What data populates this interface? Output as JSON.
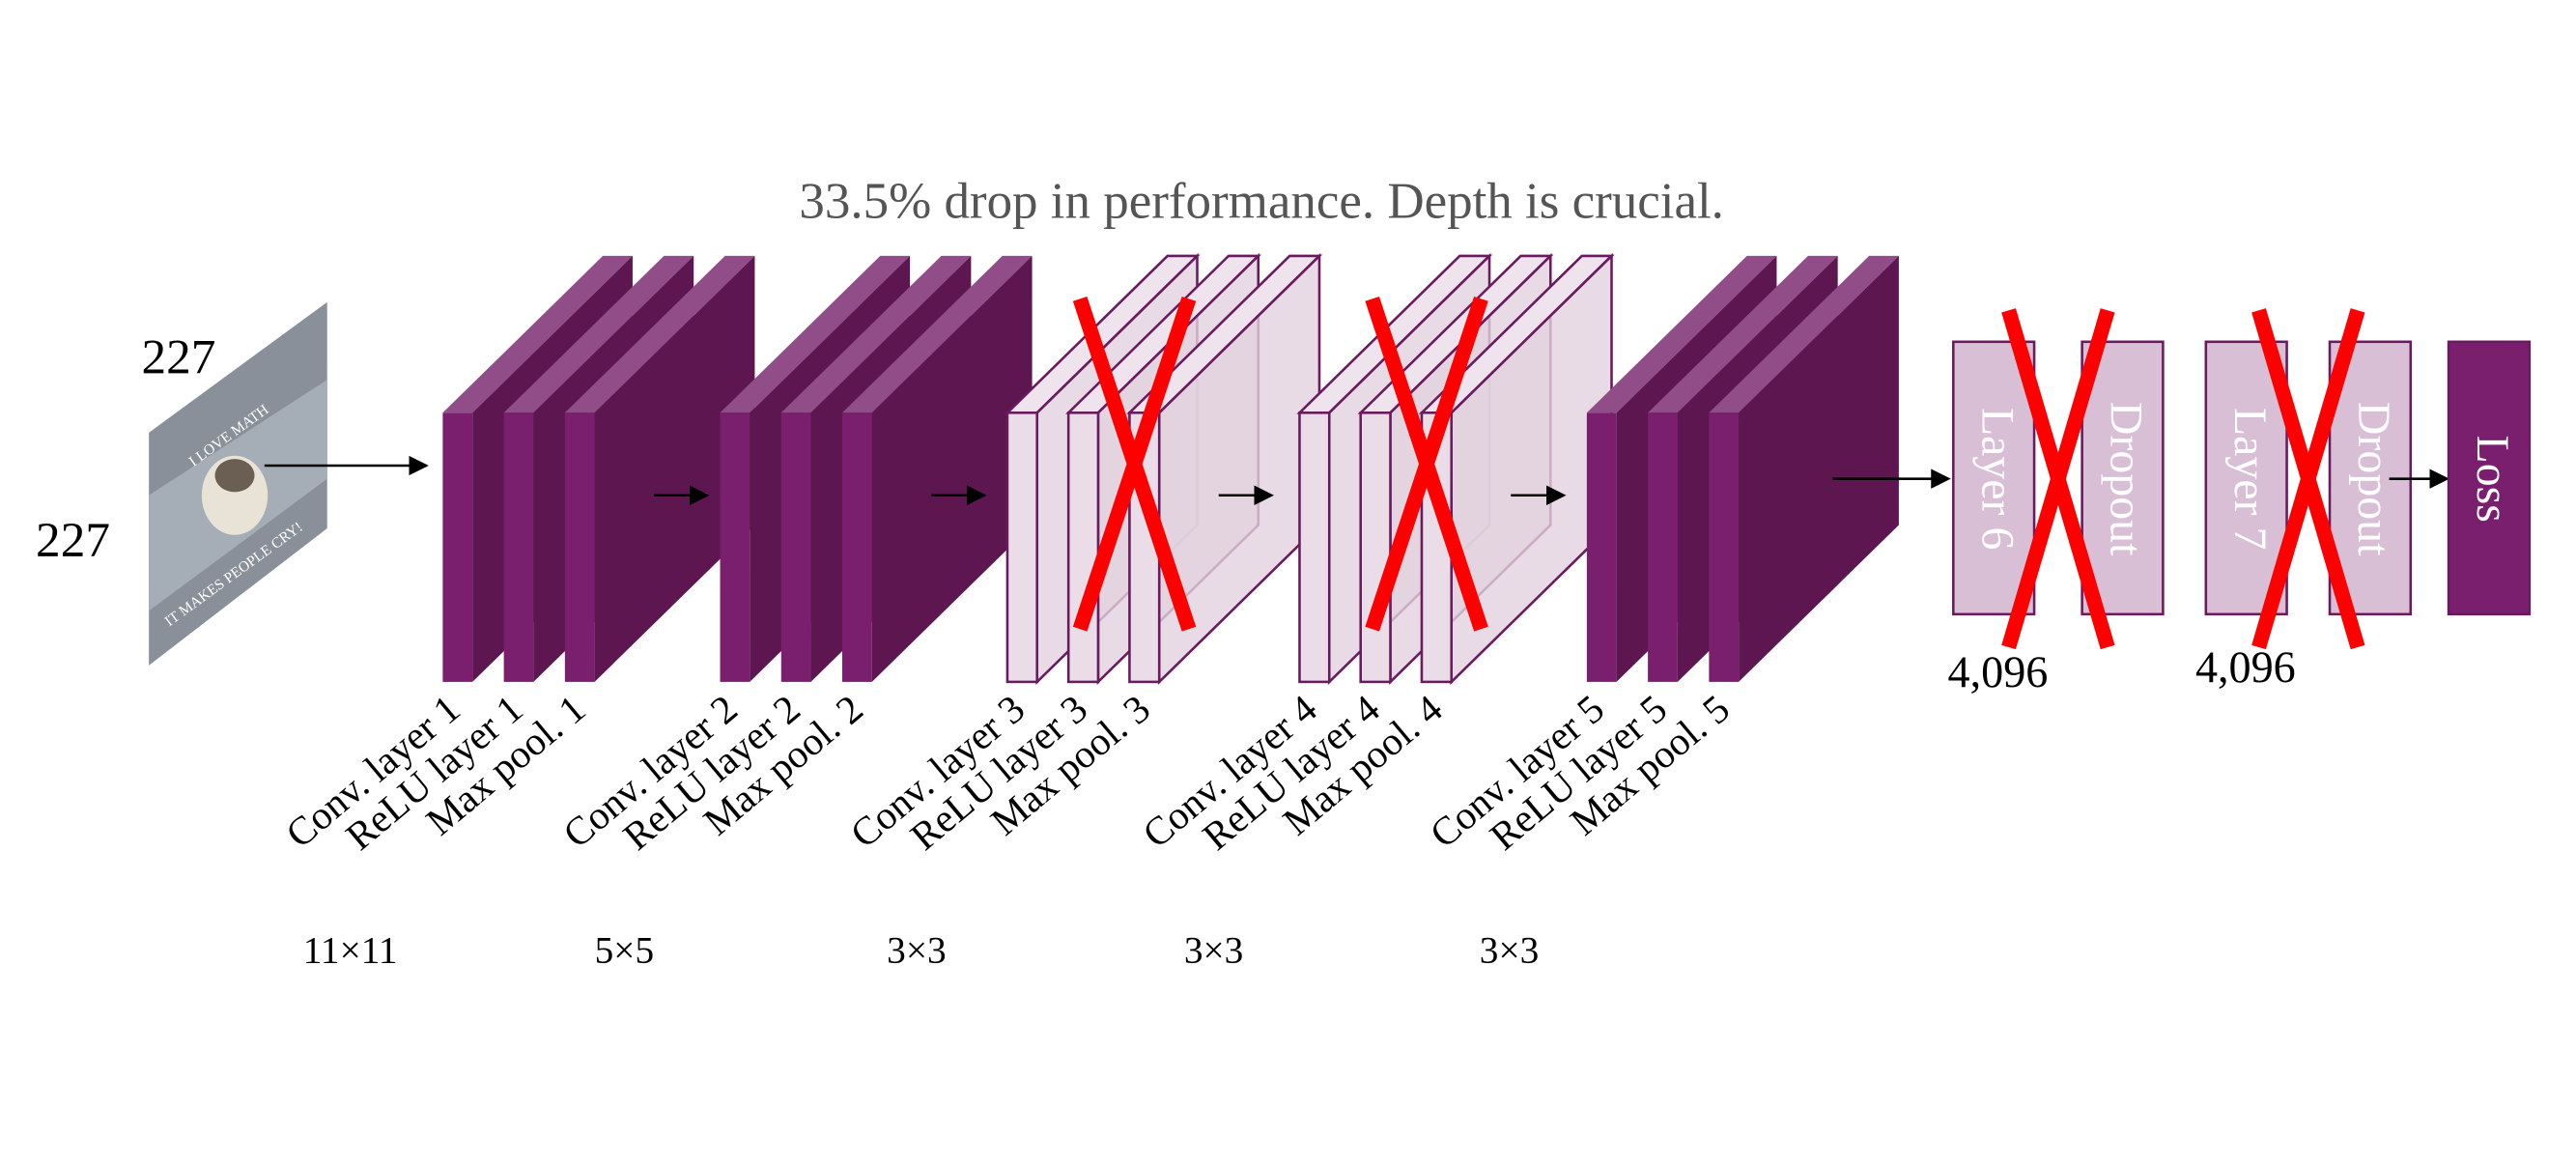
{
  "title": "33.5% drop in performance. Depth is crucial.",
  "input": {
    "width": "227",
    "height": "227",
    "image_text": [
      "I LOVE MATH",
      "IT MAKES PEOPLE CRY!"
    ]
  },
  "conv_blocks": [
    {
      "labels": [
        "Conv. layer 1",
        "ReLU layer 1",
        "Max pool. 1"
      ],
      "kernel": "11×11"
    },
    {
      "labels": [
        "Conv. layer 2",
        "ReLU layer 2",
        "Max pool. 2"
      ],
      "kernel": "5×5"
    },
    {
      "labels": [
        "Conv. layer 3",
        "ReLU layer 3",
        "Max pool. 3"
      ],
      "kernel": "3×3"
    },
    {
      "labels": [
        "Conv. layer 4",
        "ReLU layer 4",
        "Max pool. 4"
      ],
      "kernel": "3×3"
    },
    {
      "labels": [
        "Conv. layer 5",
        "ReLU layer 5",
        "Max pool. 5"
      ],
      "kernel": "3×3"
    }
  ],
  "fc_layers": [
    {
      "label": "Layer 6",
      "dropout": "Dropout",
      "size": "4,096"
    },
    {
      "label": "Layer 7",
      "dropout": "Dropout",
      "size": "4,096"
    }
  ],
  "output": {
    "label": "Loss"
  }
}
